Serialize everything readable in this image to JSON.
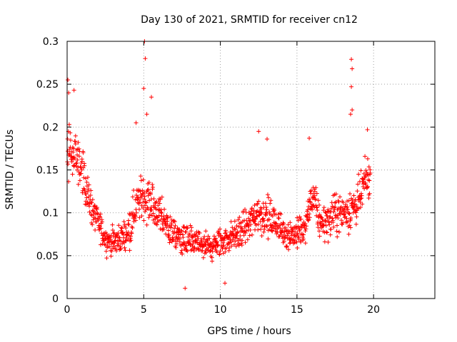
{
  "chart_data": {
    "type": "scatter",
    "title": "Day 130 of 2021, SRMTID for receiver cn12",
    "xlabel": "GPS time / hours",
    "ylabel": "SRMTID / TECUs",
    "xlim": [
      0,
      24
    ],
    "ylim": [
      0,
      0.3
    ],
    "grid": true,
    "marker": "+",
    "marker_color": "#ff0000",
    "xticks": [
      0,
      5,
      10,
      15,
      20
    ],
    "xtick_labels": [
      "0",
      "5",
      "10",
      "15",
      "20"
    ],
    "yticks": [
      0,
      0.05,
      0.1,
      0.15,
      0.2,
      0.25,
      0.3
    ],
    "ytick_labels": [
      "0",
      "0.05",
      "0.1",
      "0.15",
      "0.2",
      "0.25",
      "0.3"
    ],
    "envelope": {
      "hours": [
        0.0,
        0.5,
        1.0,
        1.5,
        2.0,
        2.5,
        3.0,
        3.5,
        4.0,
        4.5,
        5.0,
        5.5,
        6.0,
        6.5,
        7.0,
        7.5,
        8.0,
        8.5,
        9.0,
        9.5,
        10.0,
        10.5,
        11.0,
        11.5,
        12.0,
        12.5,
        13.0,
        13.5,
        14.0,
        14.5,
        15.0,
        15.5,
        16.0,
        16.5,
        17.0,
        17.5,
        18.0,
        18.5,
        19.0,
        19.5
      ],
      "median": [
        0.17,
        0.17,
        0.15,
        0.11,
        0.09,
        0.07,
        0.065,
        0.07,
        0.08,
        0.11,
        0.12,
        0.11,
        0.1,
        0.085,
        0.075,
        0.07,
        0.065,
        0.065,
        0.06,
        0.06,
        0.065,
        0.07,
        0.075,
        0.08,
        0.09,
        0.1,
        0.095,
        0.09,
        0.08,
        0.075,
        0.075,
        0.08,
        0.12,
        0.09,
        0.09,
        0.1,
        0.1,
        0.105,
        0.11,
        0.14
      ],
      "spread": [
        0.05,
        0.05,
        0.045,
        0.035,
        0.03,
        0.025,
        0.025,
        0.03,
        0.035,
        0.04,
        0.05,
        0.045,
        0.04,
        0.035,
        0.03,
        0.03,
        0.03,
        0.03,
        0.03,
        0.03,
        0.03,
        0.03,
        0.03,
        0.035,
        0.04,
        0.04,
        0.04,
        0.035,
        0.03,
        0.03,
        0.03,
        0.035,
        0.035,
        0.035,
        0.035,
        0.04,
        0.04,
        0.045,
        0.045,
        0.04
      ],
      "samples_per_hour": 60,
      "seed": 130
    },
    "notable_points": [
      {
        "x": 0.05,
        "y": 0.255
      },
      {
        "x": 0.1,
        "y": 0.24
      },
      {
        "x": 0.45,
        "y": 0.243
      },
      {
        "x": 5.05,
        "y": 0.3
      },
      {
        "x": 5.1,
        "y": 0.28
      },
      {
        "x": 5.0,
        "y": 0.245
      },
      {
        "x": 4.5,
        "y": 0.205
      },
      {
        "x": 5.5,
        "y": 0.235
      },
      {
        "x": 5.2,
        "y": 0.215
      },
      {
        "x": 18.55,
        "y": 0.279
      },
      {
        "x": 18.6,
        "y": 0.268
      },
      {
        "x": 18.55,
        "y": 0.247
      },
      {
        "x": 18.6,
        "y": 0.22
      },
      {
        "x": 18.5,
        "y": 0.215
      },
      {
        "x": 15.8,
        "y": 0.187
      },
      {
        "x": 12.5,
        "y": 0.195
      },
      {
        "x": 13.05,
        "y": 0.186
      },
      {
        "x": 7.7,
        "y": 0.012
      },
      {
        "x": 10.3,
        "y": 0.018
      },
      {
        "x": 19.6,
        "y": 0.197
      }
    ]
  }
}
